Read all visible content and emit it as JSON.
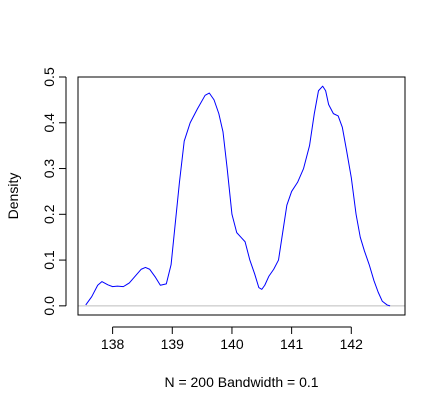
{
  "chart_data": {
    "type": "line",
    "title": "",
    "xlabel": "N = 200   Bandwidth = 0.1",
    "ylabel": "Density",
    "xlim": [
      137.42,
      142.9
    ],
    "ylim": [
      -0.02,
      0.5
    ],
    "x_ticks": [
      138,
      139,
      140,
      141,
      142
    ],
    "x_tick_labels": [
      "138",
      "139",
      "140",
      "141",
      "142"
    ],
    "y_ticks": [
      0.0,
      0.1,
      0.2,
      0.3,
      0.4,
      0.5
    ],
    "y_tick_labels": [
      "0.0",
      "0.1",
      "0.2",
      "0.3",
      "0.4",
      "0.5"
    ],
    "baseline": 0,
    "grid": false,
    "colors": {
      "line": "#0000ff",
      "baseline": "#bebebe",
      "axis": "#000000"
    },
    "series": [
      {
        "x": [
          137.55,
          137.65,
          137.75,
          137.82,
          137.92,
          138.0,
          138.08,
          138.18,
          138.28,
          138.38,
          138.48,
          138.55,
          138.62,
          138.72,
          138.8,
          138.9,
          138.98,
          139.05,
          139.12,
          139.2,
          139.3,
          139.42,
          139.55,
          139.62,
          139.7,
          139.78,
          139.85,
          139.92,
          140.0,
          140.08,
          140.15,
          140.22,
          140.3,
          140.38,
          140.45,
          140.5,
          140.55,
          140.62,
          140.7,
          140.78,
          140.85,
          140.92,
          141.0,
          141.1,
          141.2,
          141.3,
          141.38,
          141.45,
          141.52,
          141.57,
          141.62,
          141.7,
          141.78,
          141.85,
          141.92,
          142.0,
          142.08,
          142.15,
          142.22,
          142.3,
          142.38,
          142.45,
          142.52,
          142.6,
          142.65
        ],
        "y": [
          0.002,
          0.02,
          0.045,
          0.053,
          0.046,
          0.042,
          0.043,
          0.042,
          0.05,
          0.065,
          0.08,
          0.084,
          0.08,
          0.062,
          0.045,
          0.048,
          0.09,
          0.18,
          0.27,
          0.36,
          0.4,
          0.43,
          0.46,
          0.465,
          0.45,
          0.42,
          0.38,
          0.3,
          0.2,
          0.16,
          0.15,
          0.14,
          0.1,
          0.07,
          0.04,
          0.036,
          0.045,
          0.065,
          0.08,
          0.1,
          0.16,
          0.22,
          0.25,
          0.27,
          0.3,
          0.35,
          0.42,
          0.47,
          0.48,
          0.47,
          0.44,
          0.42,
          0.415,
          0.39,
          0.34,
          0.28,
          0.2,
          0.15,
          0.12,
          0.09,
          0.055,
          0.03,
          0.01,
          0.002,
          0.0
        ]
      }
    ]
  }
}
